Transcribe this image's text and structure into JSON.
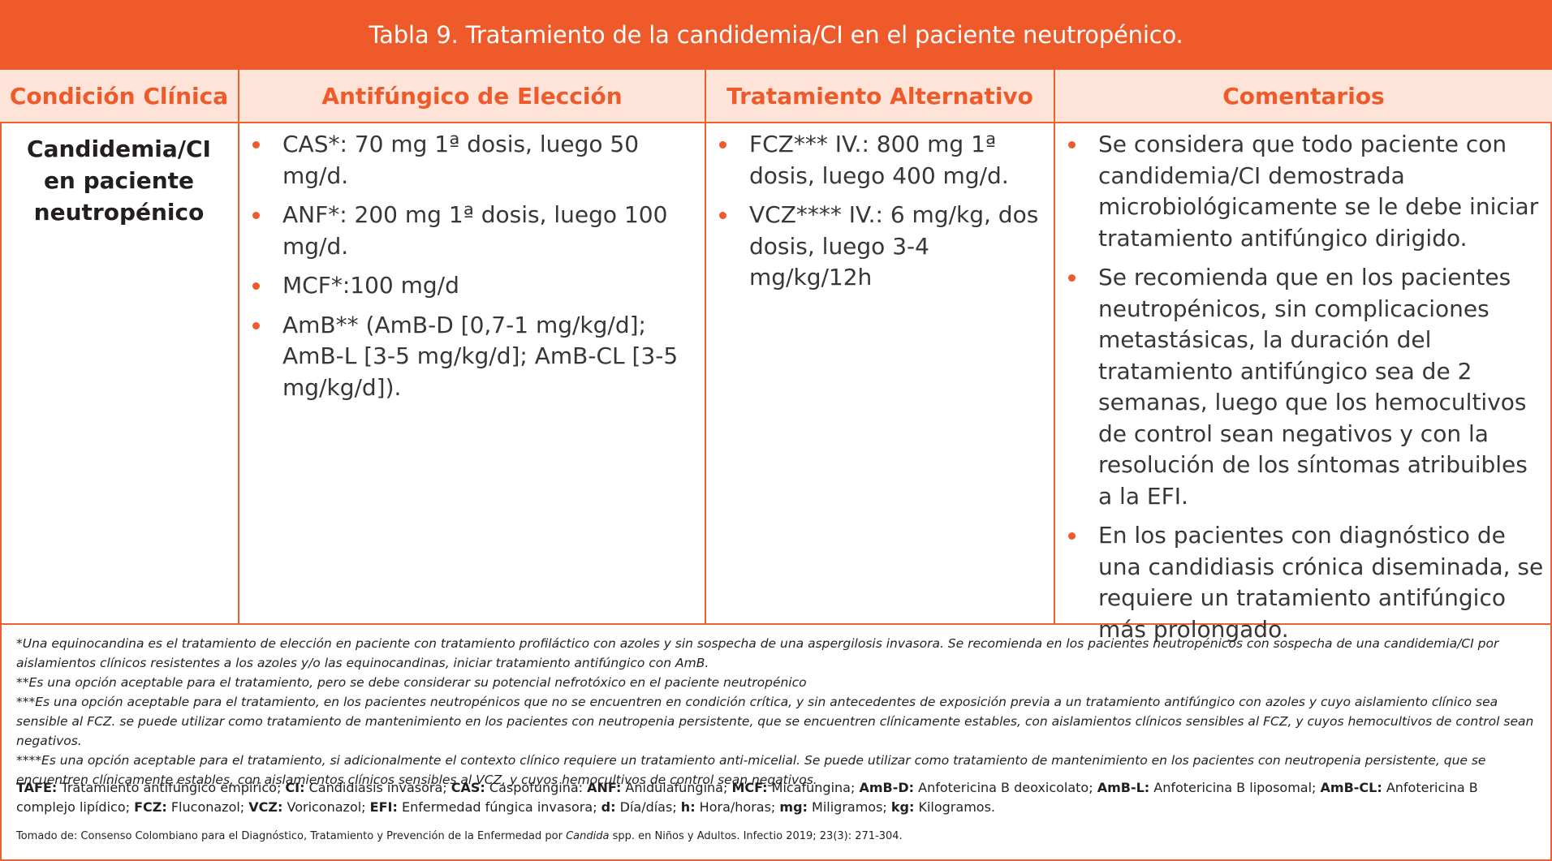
{
  "title": "Tabla 9. Tratamiento de la candidemia/CI en el paciente neutropénico.",
  "headers": {
    "condition": "Condición Clínica",
    "choice": "Antifúngico de Elección",
    "alternative": "Tratamiento Alternativo",
    "comments": "Comentarios"
  },
  "condition": {
    "line1": "Candidemia/CI",
    "line2": "en paciente",
    "line3": "neutropénico"
  },
  "choice_items": [
    "CAS*: 70 mg 1ª dosis, luego 50 mg/d.",
    "ANF*: 200 mg 1ª dosis, luego 100 mg/d.",
    "MCF*:100 mg/d",
    "AmB** (AmB-D [0,7-1 mg/kg/d]; AmB-L [3-5 mg/kg/d]; AmB-CL [3-5 mg/kg/d])."
  ],
  "alternative_items": [
    "FCZ*** IV.: 800 mg 1ª dosis, luego 400 mg/d.",
    "VCZ**** IV.: 6 mg/kg, dos dosis, luego 3-4 mg/kg/12h"
  ],
  "comment_items": [
    "Se considera que todo paciente con candidemia/CI demostrada microbiológicamente se le debe iniciar tratamiento antifúngico dirigido.",
    "Se recomienda que en los pacientes neutropénicos, sin complicaciones metastásicas, la duración del tratamiento antifúngico sea de 2 semanas, luego que los hemocultivos de control sean negativos y con la resolución de los síntomas atribuibles a la EFI.",
    "En los pacientes con diagnóstico de una candidiasis crónica diseminada, se requiere un tratamiento antifúngico más prolongado."
  ],
  "footnotes": [
    "*Una equinocandina es el tratamiento de elección en paciente con tratamiento profiláctico con azoles y sin sospecha de una aspergilosis invasora. Se recomienda en los pacientes neutropénicos con sospecha de una candidemia/CI por aislamientos clínicos resistentes a los azoles y/o las equinocandinas, iniciar tratamiento antifúngico con AmB.",
    "**Es una opción aceptable para el tratamiento, pero se debe considerar su potencial nefrotóxico en el paciente neutropénico",
    "***Es una opción aceptable para el tratamiento, en los pacientes neutropénicos que no se encuentren en condición crítica, y sin antecedentes de exposición previa a un tratamiento antifúngico con azoles y cuyo aislamiento clínico sea sensible al FCZ. se puede utilizar como tratamiento de mantenimiento en los pacientes con neutropenia persistente, que se encuentren clínicamente estables, con aislamientos clínicos sensibles al FCZ, y cuyos hemocultivos de control sean negativos.",
    "****Es una opción aceptable para el tratamiento, si adicionalmente el contexto clínico requiere un tratamiento anti-micelial. Se puede utilizar como tratamiento de mantenimiento en los pacientes con neutropenia persistente, que se encuentren clínicamente estables, con aislamientos clínicos sensibles al VCZ, y cuyos hemocultivos de control sean negativos."
  ],
  "abbreviations": [
    {
      "term": "TAFE:",
      "def": " Tratamiento antifúngico empírico; "
    },
    {
      "term": "CI:",
      "def": " Candidiasis invasora; "
    },
    {
      "term": "CAS:",
      "def": " Caspofungina: "
    },
    {
      "term": "ANF:",
      "def": " Anidulafungina; "
    },
    {
      "term": "MCF:",
      "def": " Micafungina; "
    },
    {
      "term": "AmB-D:",
      "def": " Anfotericina B deoxicolato; "
    },
    {
      "term": "AmB-L:",
      "def": " Anfotericina B liposomal; "
    },
    {
      "term": "AmB-CL:",
      "def": " Anfotericina B complejo lipídico; "
    },
    {
      "term": "FCZ:",
      "def": " Fluconazol; "
    },
    {
      "term": "VCZ:",
      "def": " Voriconazol; "
    },
    {
      "term": "EFI:",
      "def": " Enfermedad fúngica invasora; "
    },
    {
      "term": "d:",
      "def": " Día/días; "
    },
    {
      "term": "h:",
      "def": " Hora/horas; "
    },
    {
      "term": "mg:",
      "def": " Miligramos; "
    },
    {
      "term": "kg:",
      "def": " Kilogramos."
    }
  ],
  "source": {
    "before": "Tomado de: Consenso Colombiano para el Diagnóstico, Tratamiento y Prevención de la Enfermedad por ",
    "italic": "Candida",
    "after": " spp. en Niños y Adultos. Infectio 2019; 23(3): 271-304."
  },
  "colors": {
    "accent": "#ee5a2a",
    "header_bg": "#fde3d8",
    "border": "#ee6133"
  }
}
